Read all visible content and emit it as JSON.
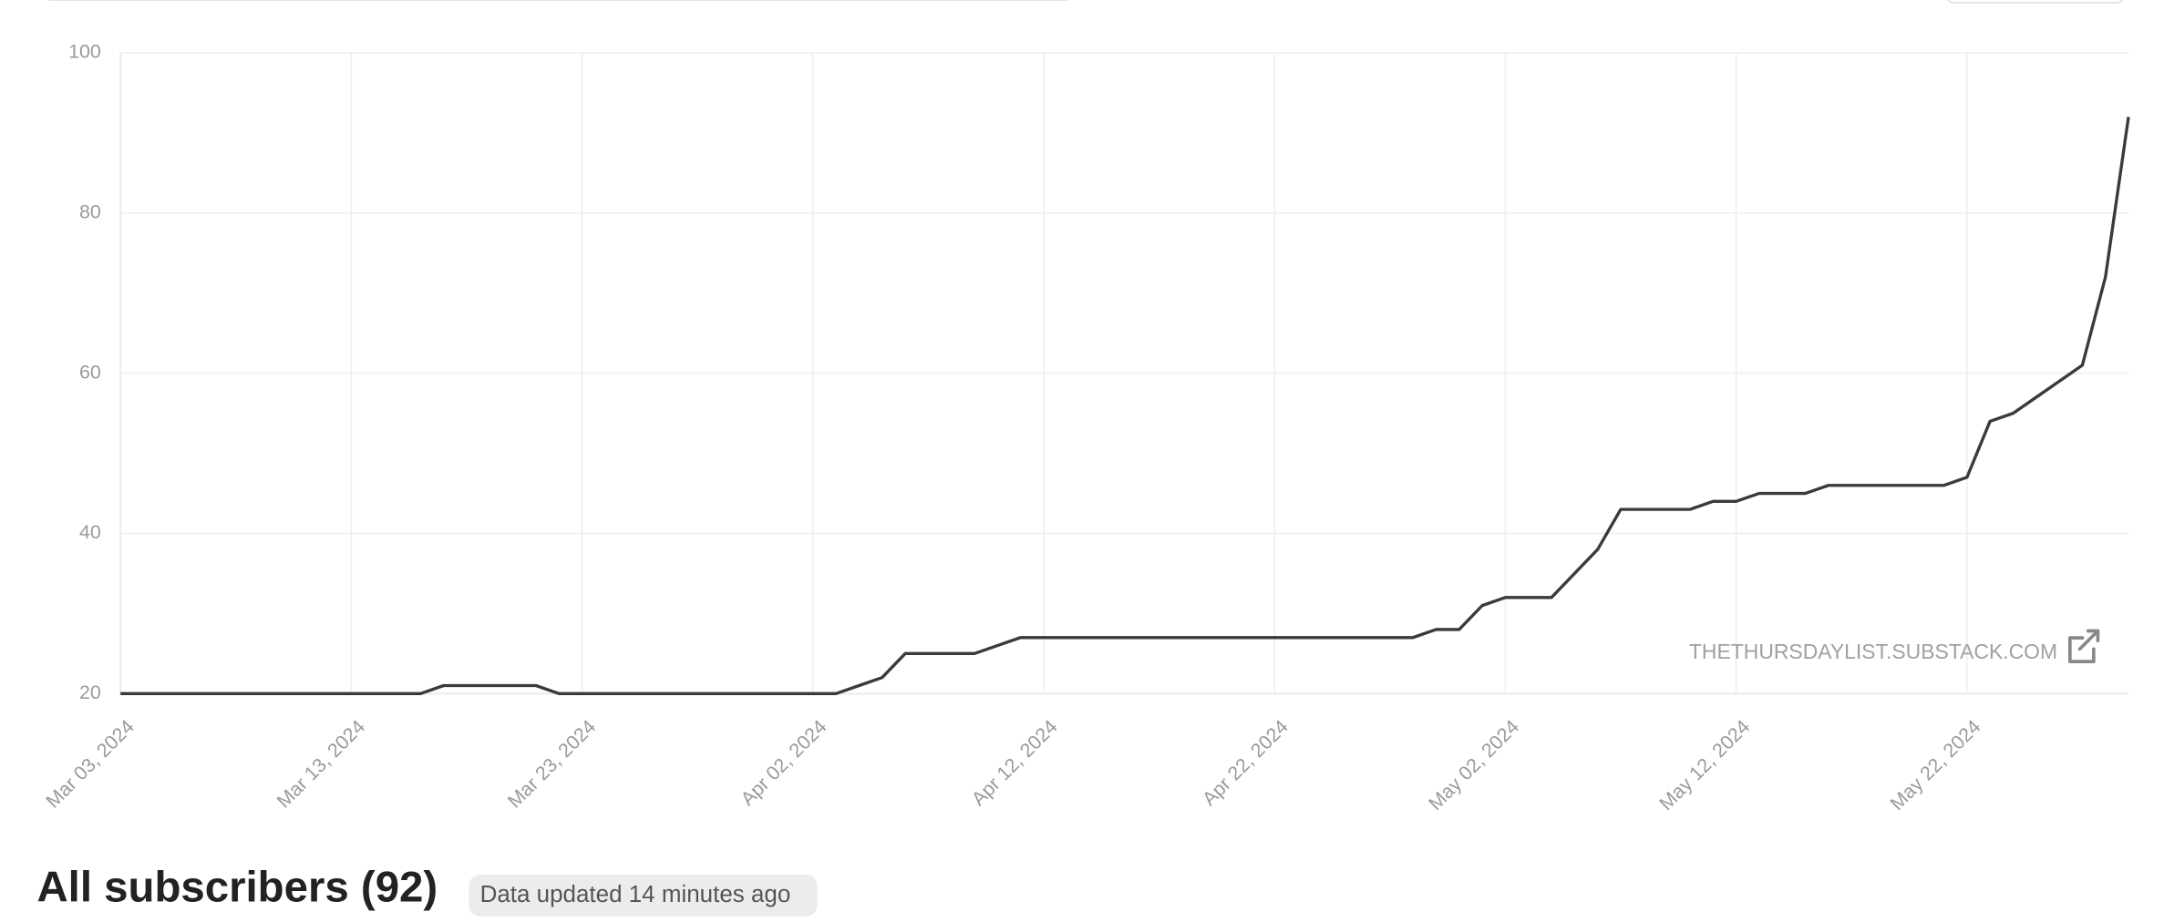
{
  "chart_data": {
    "type": "line",
    "watermark": "THETHURSDAYLIST.SUBSTACK.COM",
    "x": [
      "2024-03-03",
      "2024-03-04",
      "2024-03-05",
      "2024-03-06",
      "2024-03-07",
      "2024-03-08",
      "2024-03-09",
      "2024-03-10",
      "2024-03-11",
      "2024-03-12",
      "2024-03-13",
      "2024-03-14",
      "2024-03-15",
      "2024-03-16",
      "2024-03-17",
      "2024-03-18",
      "2024-03-19",
      "2024-03-20",
      "2024-03-21",
      "2024-03-22",
      "2024-03-23",
      "2024-03-24",
      "2024-03-25",
      "2024-03-26",
      "2024-03-27",
      "2024-03-28",
      "2024-03-29",
      "2024-03-30",
      "2024-03-31",
      "2024-04-01",
      "2024-04-02",
      "2024-04-03",
      "2024-04-04",
      "2024-04-05",
      "2024-04-06",
      "2024-04-07",
      "2024-04-08",
      "2024-04-09",
      "2024-04-10",
      "2024-04-11",
      "2024-04-12",
      "2024-04-13",
      "2024-04-14",
      "2024-04-15",
      "2024-04-16",
      "2024-04-17",
      "2024-04-18",
      "2024-04-19",
      "2024-04-20",
      "2024-04-21",
      "2024-04-22",
      "2024-04-23",
      "2024-04-24",
      "2024-04-25",
      "2024-04-26",
      "2024-04-27",
      "2024-04-28",
      "2024-04-29",
      "2024-04-30",
      "2024-05-01",
      "2024-05-02",
      "2024-05-03",
      "2024-05-04",
      "2024-05-05",
      "2024-05-06",
      "2024-05-07",
      "2024-05-08",
      "2024-05-09",
      "2024-05-10",
      "2024-05-11",
      "2024-05-12",
      "2024-05-13",
      "2024-05-14",
      "2024-05-15",
      "2024-05-16",
      "2024-05-17",
      "2024-05-18",
      "2024-05-19",
      "2024-05-20",
      "2024-05-21",
      "2024-05-22",
      "2024-05-23",
      "2024-05-24",
      "2024-05-25",
      "2024-05-26",
      "2024-05-27",
      "2024-05-28",
      "2024-05-29"
    ],
    "series": [
      {
        "color": "#3a3a3a",
        "values": [
          20,
          20,
          20,
          20,
          20,
          20,
          20,
          20,
          20,
          20,
          20,
          20,
          20,
          20,
          21,
          21,
          21,
          21,
          21,
          20,
          20,
          20,
          20,
          20,
          20,
          20,
          20,
          20,
          20,
          20,
          20,
          20,
          21,
          22,
          25,
          25,
          25,
          25,
          26,
          27,
          27,
          27,
          27,
          27,
          27,
          27,
          27,
          27,
          27,
          27,
          27,
          27,
          27,
          27,
          27,
          27,
          27,
          28,
          28,
          31,
          32,
          32,
          32,
          35,
          38,
          43,
          43,
          43,
          43,
          44,
          44,
          45,
          45,
          45,
          46,
          46,
          46,
          46,
          46,
          46,
          47,
          54,
          55,
          57,
          59,
          61,
          72,
          92
        ]
      }
    ],
    "xlim": [
      "2024-03-03",
      "2024-05-29"
    ],
    "xticks": [
      {
        "value": "2024-03-03",
        "label": "Mar 03, 2024"
      },
      {
        "value": "2024-03-13",
        "label": "Mar 13, 2024"
      },
      {
        "value": "2024-03-23",
        "label": "Mar 23, 2024"
      },
      {
        "value": "2024-04-02",
        "label": "Apr 02, 2024"
      },
      {
        "value": "2024-04-12",
        "label": "Apr 12, 2024"
      },
      {
        "value": "2024-04-22",
        "label": "Apr 22, 2024"
      },
      {
        "value": "2024-05-02",
        "label": "May 02, 2024"
      },
      {
        "value": "2024-05-12",
        "label": "May 12, 2024"
      },
      {
        "value": "2024-05-22",
        "label": "May 22, 2024"
      }
    ],
    "ylim": [
      20,
      100
    ],
    "yticks": [
      20,
      40,
      60,
      80,
      100
    ],
    "grid": true
  },
  "heading": "All subscribers (92)",
  "status": "Data updated 14 minutes ago"
}
